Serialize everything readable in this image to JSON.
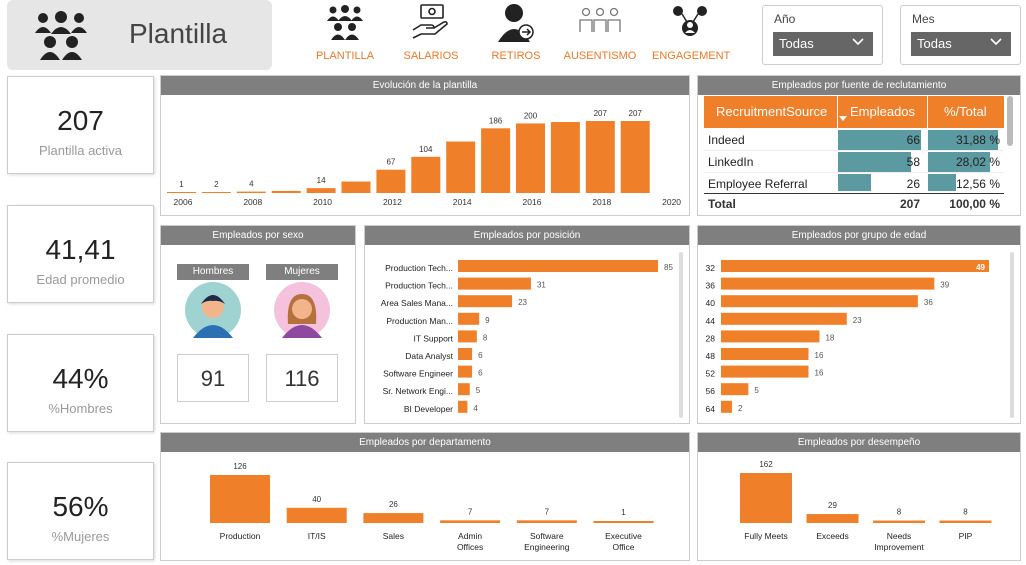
{
  "header": {
    "title": "Plantilla",
    "nav": [
      {
        "label": "PLANTILLA",
        "icon": "team-icon"
      },
      {
        "label": "SALARIOS",
        "icon": "money-hand-icon"
      },
      {
        "label": "RETIROS",
        "icon": "user-exit-icon"
      },
      {
        "label": "AUSENTISMO",
        "icon": "group-absent-icon"
      },
      {
        "label": "ENGAGEMENT",
        "icon": "network-users-icon"
      }
    ],
    "slicers": [
      {
        "label": "Año",
        "value": "Todas"
      },
      {
        "label": "Mes",
        "value": "Todas"
      }
    ]
  },
  "kpis": [
    {
      "value": "207",
      "caption": "Plantilla activa"
    },
    {
      "value": "41,41",
      "caption": "Edad promedio"
    },
    {
      "value": "44%",
      "caption": "%Hombres"
    },
    {
      "value": "56%",
      "caption": "%Mujeres"
    }
  ],
  "colors": {
    "accent": "#f07f2a",
    "header": "#7f7f7f",
    "teal": "#5b9aa0"
  },
  "evolution": {
    "title": "Evolución de la plantilla",
    "xticks": [
      "2006",
      "2008",
      "2010",
      "2012",
      "2014",
      "2016",
      "2018",
      "2020"
    ]
  },
  "recruitment": {
    "title": "Empleados por fuente de reclutamiento",
    "columns": [
      "RecruitmentSource",
      "Empleados",
      "%/Total"
    ],
    "rows": [
      {
        "source": "Indeed",
        "count": "66",
        "pct": "31,88 %",
        "frac": 0.3188
      },
      {
        "source": "LinkedIn",
        "count": "58",
        "pct": "28,02 %",
        "frac": 0.2802
      },
      {
        "source": "Employee Referral",
        "count": "26",
        "pct": "12,56 %",
        "frac": 0.1256
      }
    ],
    "total_label": "Total",
    "total_count": "207",
    "total_pct": "100,00 %"
  },
  "gender": {
    "title": "Empleados por sexo",
    "male_label": "Hombres",
    "female_label": "Mujeres",
    "male_count": "91",
    "female_count": "116"
  },
  "position": {
    "title": "Empleados por posición"
  },
  "age": {
    "title": "Empleados por grupo de edad"
  },
  "department": {
    "title": "Empleados por departamento"
  },
  "performance": {
    "title": "Empleados por desempeño"
  },
  "chart_data": [
    {
      "type": "bar",
      "title": "Evolución de la plantilla",
      "categories": [
        "2006",
        "2007",
        "2008",
        "2009",
        "2010",
        "2011",
        "2012",
        "2013",
        "2014",
        "2015",
        "2016",
        "2017",
        "2018",
        "2019"
      ],
      "values": [
        1,
        2,
        4,
        6,
        14,
        33,
        67,
        104,
        148,
        186,
        200,
        204,
        207,
        207
      ],
      "data_labels": [
        1,
        2,
        4,
        null,
        14,
        null,
        67,
        104,
        null,
        186,
        200,
        null,
        207,
        207
      ],
      "xlabel": "",
      "ylabel": ""
    },
    {
      "type": "bar",
      "title": "Empleados por posición",
      "orientation": "horizontal",
      "categories": [
        "Production Tech...",
        "Production Tech...",
        "Area Sales Mana...",
        "Production Man...",
        "IT Support",
        "Data Analyst",
        "Software Engineer",
        "Sr. Network Engi...",
        "BI Developer"
      ],
      "values": [
        85,
        31,
        23,
        9,
        8,
        6,
        6,
        5,
        4
      ]
    },
    {
      "type": "bar",
      "title": "Empleados por grupo de edad",
      "orientation": "horizontal",
      "categories": [
        "32",
        "36",
        "40",
        "44",
        "28",
        "48",
        "52",
        "56",
        "64"
      ],
      "values": [
        49,
        39,
        36,
        23,
        18,
        16,
        16,
        5,
        2
      ]
    },
    {
      "type": "bar",
      "title": "Empleados por departamento",
      "categories": [
        "Production",
        "IT/IS",
        "Sales",
        "Admin Offices",
        "Software Engineering",
        "Executive Office"
      ],
      "values": [
        126,
        40,
        26,
        7,
        7,
        1
      ]
    },
    {
      "type": "bar",
      "title": "Empleados por desempeño",
      "categories": [
        "Fully Meets",
        "Exceeds",
        "Needs Improvement",
        "PIP"
      ],
      "values": [
        162,
        29,
        8,
        8
      ]
    }
  ]
}
